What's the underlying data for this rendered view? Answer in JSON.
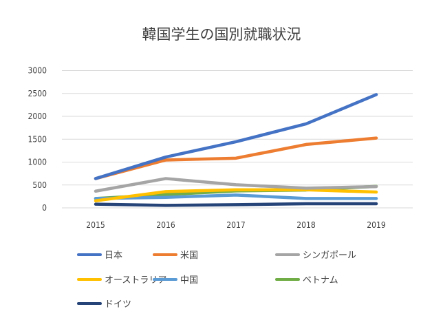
{
  "chart_data": {
    "type": "line",
    "title": "韓国学生の国別就職状況",
    "xlabel": "",
    "ylabel": "",
    "categories": [
      "2015",
      "2016",
      "2017",
      "2018",
      "2019"
    ],
    "ylim": [
      0,
      3000
    ],
    "yticks": [
      "0",
      "500",
      "1000",
      "1500",
      "2000",
      "2500",
      "3000"
    ],
    "grid": true,
    "legend_position": "bottom",
    "series": [
      {
        "name": "日本",
        "color": "#4472C4",
        "values": [
          640,
          1110,
          1445,
          1835,
          2475
        ]
      },
      {
        "name": "米国",
        "color": "#ED7D31",
        "values": [
          640,
          1045,
          1085,
          1385,
          1525
        ]
      },
      {
        "name": "シンガポール",
        "color": "#A5A5A5",
        "values": [
          365,
          640,
          505,
          430,
          465
        ]
      },
      {
        "name": "オーストラリア",
        "color": "#FFC000",
        "values": [
          155,
          355,
          395,
          395,
          345
        ]
      },
      {
        "name": "中国",
        "color": "#5B9BD5",
        "values": [
          205,
          230,
          280,
          205,
          205
        ]
      },
      {
        "name": "ベトナム",
        "color": "#70AD47",
        "values": [
          205,
          290,
          370,
          390,
          470
        ]
      },
      {
        "name": "ドイツ",
        "color": "#264478",
        "values": [
          80,
          55,
          70,
          90,
          90
        ]
      }
    ]
  }
}
